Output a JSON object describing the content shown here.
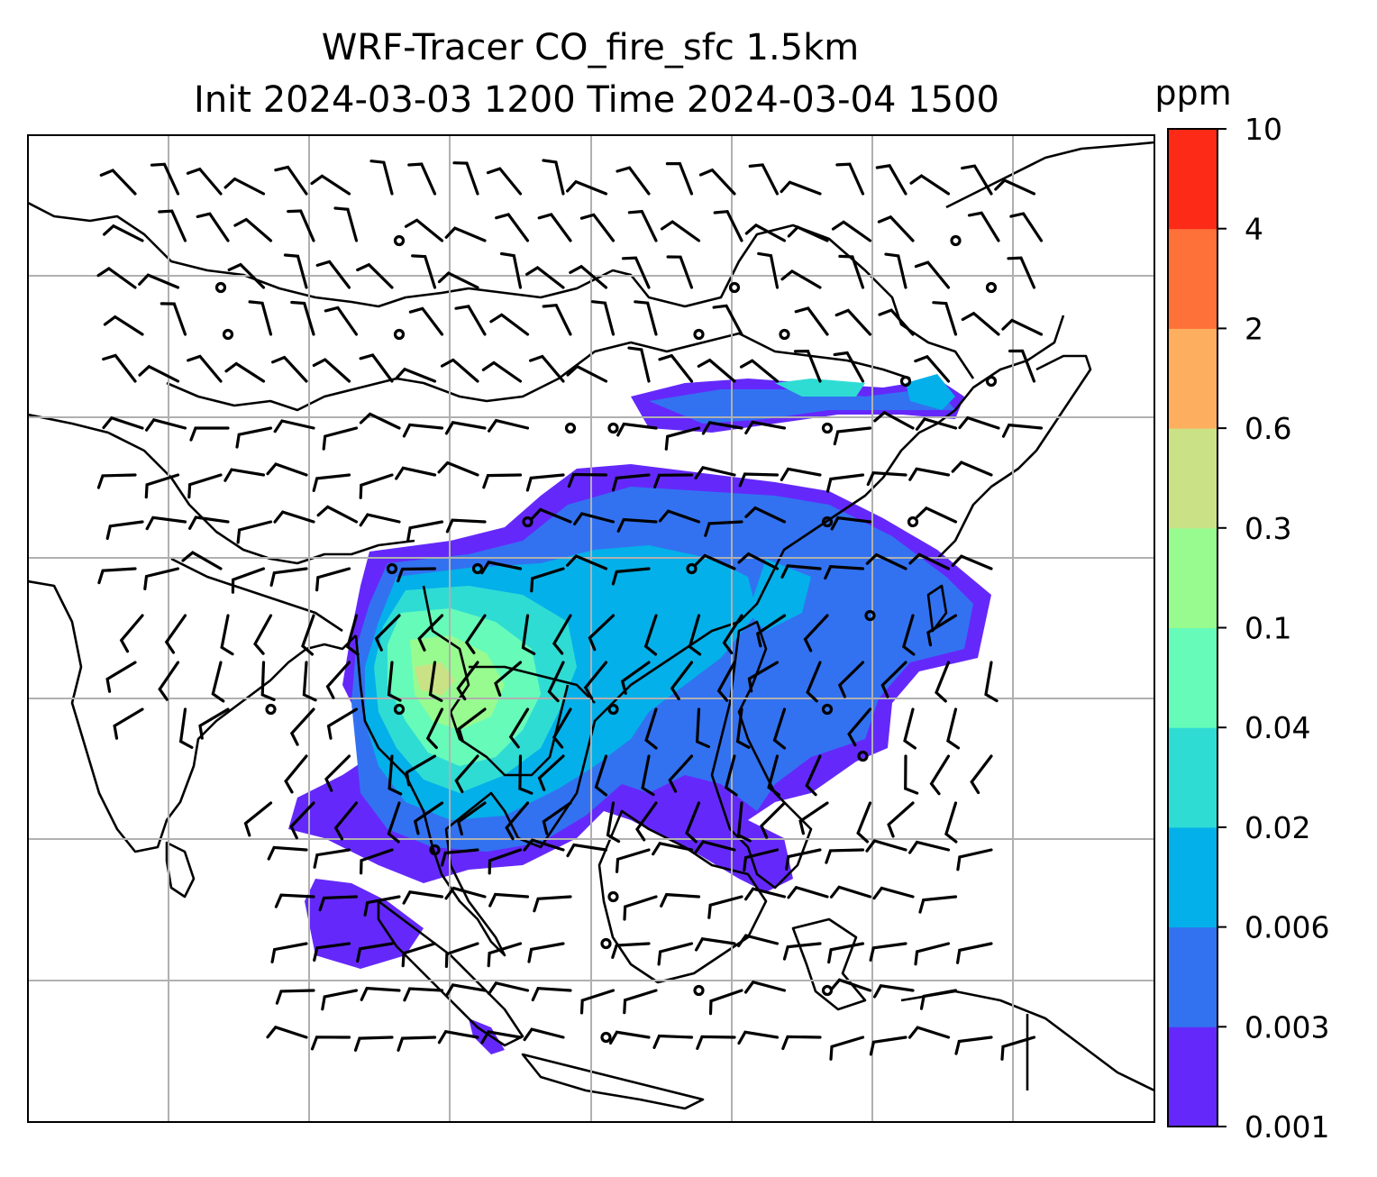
{
  "title": {
    "line1": "WRF-Tracer CO_fire_sfc 1.5km",
    "line2": "Init 2024-03-03 1200 Time 2024-03-04 1500"
  },
  "colorbar": {
    "unit": "ppm",
    "levels": [
      "0.001",
      "0.003",
      "0.006",
      "0.02",
      "0.04",
      "0.1",
      "0.3",
      "0.6",
      "2",
      "4",
      "10"
    ],
    "colors": [
      "#6429fa",
      "#3272f1",
      "#04b0e9",
      "#2fdcd4",
      "#67fbb9",
      "#98fb8f",
      "#cbe186",
      "#fdaf5f",
      "#fe7139",
      "#fc2a17"
    ]
  },
  "map": {
    "gridlines": true,
    "coastline_color": "#000000",
    "grid_color": "#b0b0b0"
  }
}
